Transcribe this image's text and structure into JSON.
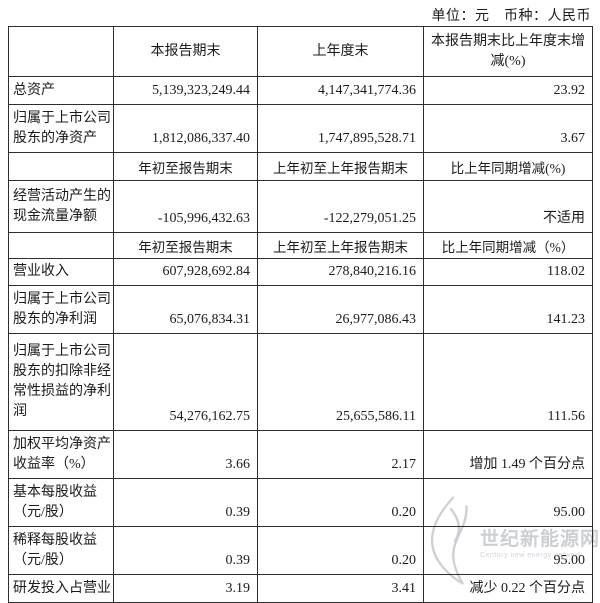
{
  "page": {
    "unit_note": "单位：元　币种：人民币"
  },
  "table": {
    "header": {
      "metric": "",
      "current": "本报告期末",
      "prior": "上年度末",
      "change": "本报告期末比上年度末增减(%)"
    },
    "rows": [
      {
        "type": "data",
        "label": "总资产",
        "current": "5,139,323,249.44",
        "prior": "4,147,341,774.36",
        "change": "23.92"
      },
      {
        "type": "data",
        "label": "归属于上市公司股东的净资产",
        "current": "1,812,086,337.40",
        "prior": "1,747,895,528.71",
        "change": "3.67"
      },
      {
        "type": "subheader",
        "label": "",
        "current": "年初至报告期末",
        "prior": "上年初至上年报告期末",
        "change": "比上年同期增减(%)"
      },
      {
        "type": "data",
        "label": "经营活动产生的现金流量净额",
        "current": "-105,996,432.63",
        "prior": "-122,279,051.25",
        "change": "不适用"
      },
      {
        "type": "subheader",
        "label": "",
        "current": "年初至报告期末",
        "prior": "上年初至上年报告期末",
        "change": "比上年同期增减（%）"
      },
      {
        "type": "data",
        "label": "营业收入",
        "current": "607,928,692.84",
        "prior": "278,840,216.16",
        "change": "118.02"
      },
      {
        "type": "data",
        "label": "归属于上市公司股东的净利润",
        "current": "65,076,834.31",
        "prior": "26,977,086.43",
        "change": "141.23"
      },
      {
        "type": "data",
        "label": "归属于上市公司股东的扣除非经常性损益的净利润",
        "current": "54,276,162.75",
        "prior": "25,655,586.11",
        "change": "111.56"
      },
      {
        "type": "data",
        "label": "加权平均净资产收益率（%）",
        "current": "3.66",
        "prior": "2.17",
        "change": "增加 1.49 个百分点"
      },
      {
        "type": "data",
        "label": "基本每股收益（元/股）",
        "current": "0.39",
        "prior": "0.20",
        "change": "95.00"
      },
      {
        "type": "data",
        "label": "稀释每股收益（元/股）",
        "current": "0.39",
        "prior": "0.20",
        "change": "95.00"
      },
      {
        "type": "data",
        "label": "研发投入占营业",
        "current": "3.19",
        "prior": "3.41",
        "change": "减少 0.22 个百分点"
      }
    ]
  },
  "watermark": {
    "site_name": "世纪新能源网",
    "tagline": "Century new energy network"
  }
}
